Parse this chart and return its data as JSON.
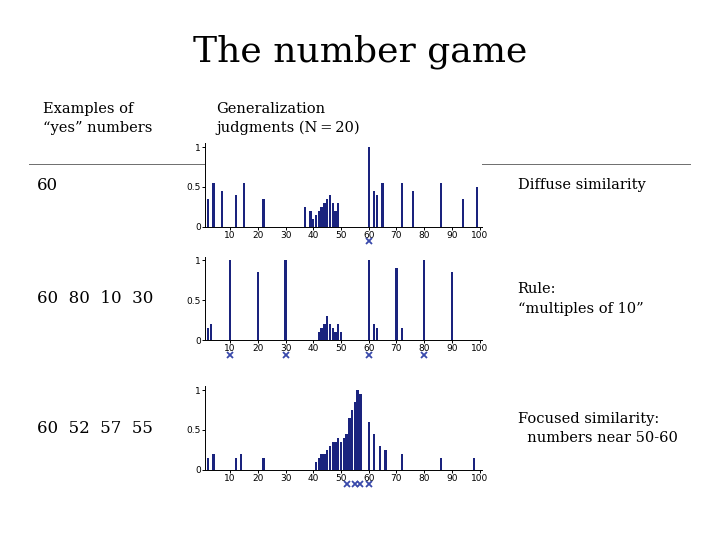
{
  "title": "The number game",
  "col1_header": "Examples of\n“yes” numbers",
  "col2_header": "Generalization\njudgments (N = 20)",
  "row_labels": [
    "60",
    "60  80  10  30",
    "60  52  57  55"
  ],
  "row_annotations": [
    "Diffuse similarity",
    "Rule:\n“multiples of 10”",
    "Focused similarity:\n  numbers near 50-60"
  ],
  "bar_color": "#1a237e",
  "x_ticks": [
    10,
    20,
    30,
    40,
    50,
    60,
    70,
    80,
    90,
    100
  ],
  "chart1_heights": [
    0.0,
    0.35,
    0.0,
    0.55,
    0.0,
    0.0,
    0.45,
    0.0,
    0.0,
    0.0,
    0.0,
    0.4,
    0.0,
    0.0,
    0.55,
    0.0,
    0.0,
    0.0,
    0.0,
    0.0,
    0.0,
    0.35,
    0.0,
    0.0,
    0.0,
    0.0,
    0.0,
    0.0,
    0.0,
    0.0,
    0.0,
    0.0,
    0.0,
    0.0,
    0.0,
    0.0,
    0.25,
    0.0,
    0.2,
    0.1,
    0.15,
    0.2,
    0.25,
    0.3,
    0.35,
    0.4,
    0.3,
    0.2,
    0.3,
    0.0,
    0.0,
    0.0,
    0.0,
    0.0,
    0.0,
    0.0,
    0.0,
    0.0,
    0.0,
    1.0,
    0.0,
    0.45,
    0.4,
    0.0,
    0.55,
    0.0,
    0.0,
    0.0,
    0.0,
    0.0,
    0.0,
    0.55,
    0.0,
    0.0,
    0.0,
    0.45,
    0.0,
    0.0,
    0.0,
    0.0,
    0.0,
    0.0,
    0.0,
    0.0,
    0.0,
    0.55,
    0.0,
    0.0,
    0.0,
    0.0,
    0.0,
    0.0,
    0.0,
    0.35,
    0.0,
    0.0,
    0.0,
    0.0,
    0.5,
    0.0
  ],
  "chart1_stars": [
    60
  ],
  "chart2_heights": [
    0.0,
    0.15,
    0.2,
    0.0,
    0.0,
    0.0,
    0.0,
    0.0,
    0.0,
    1.0,
    0.0,
    0.0,
    0.0,
    0.0,
    0.0,
    0.0,
    0.0,
    0.0,
    0.0,
    0.85,
    0.0,
    0.0,
    0.0,
    0.0,
    0.0,
    0.0,
    0.0,
    0.0,
    0.0,
    1.0,
    0.0,
    0.0,
    0.0,
    0.0,
    0.0,
    0.0,
    0.0,
    0.0,
    0.0,
    0.0,
    0.0,
    0.1,
    0.15,
    0.2,
    0.3,
    0.2,
    0.15,
    0.1,
    0.2,
    0.1,
    0.0,
    0.0,
    0.0,
    0.0,
    0.0,
    0.0,
    0.0,
    0.0,
    0.0,
    1.0,
    0.0,
    0.2,
    0.15,
    0.0,
    0.0,
    0.0,
    0.0,
    0.0,
    0.0,
    0.9,
    0.0,
    0.15,
    0.0,
    0.0,
    0.0,
    0.0,
    0.0,
    0.0,
    0.0,
    1.0,
    0.0,
    0.0,
    0.0,
    0.0,
    0.0,
    0.0,
    0.0,
    0.0,
    0.0,
    0.85,
    0.0,
    0.0,
    0.0,
    0.0,
    0.0,
    0.0,
    0.0,
    0.0,
    0.0,
    0.0
  ],
  "chart2_stars": [
    10,
    30,
    60,
    80
  ],
  "chart3_heights": [
    0.0,
    0.15,
    0.0,
    0.2,
    0.0,
    0.0,
    0.0,
    0.0,
    0.0,
    0.0,
    0.0,
    0.15,
    0.0,
    0.2,
    0.0,
    0.0,
    0.0,
    0.0,
    0.0,
    0.0,
    0.0,
    0.15,
    0.0,
    0.0,
    0.0,
    0.0,
    0.0,
    0.0,
    0.0,
    0.0,
    0.0,
    0.0,
    0.0,
    0.0,
    0.0,
    0.0,
    0.0,
    0.0,
    0.0,
    0.0,
    0.1,
    0.15,
    0.2,
    0.2,
    0.25,
    0.3,
    0.35,
    0.35,
    0.4,
    0.35,
    0.4,
    0.45,
    0.65,
    0.75,
    0.85,
    1.0,
    0.95,
    0.0,
    0.0,
    0.6,
    0.0,
    0.45,
    0.0,
    0.3,
    0.0,
    0.25,
    0.0,
    0.0,
    0.0,
    0.0,
    0.0,
    0.2,
    0.0,
    0.0,
    0.0,
    0.0,
    0.0,
    0.0,
    0.0,
    0.0,
    0.0,
    0.0,
    0.0,
    0.0,
    0.0,
    0.15,
    0.0,
    0.0,
    0.0,
    0.0,
    0.0,
    0.0,
    0.0,
    0.0,
    0.0,
    0.0,
    0.0,
    0.15,
    0.0,
    0.0
  ],
  "chart3_stars": [
    52,
    55,
    57,
    60
  ],
  "background_color": "#ffffff",
  "divider_color": "#555555"
}
